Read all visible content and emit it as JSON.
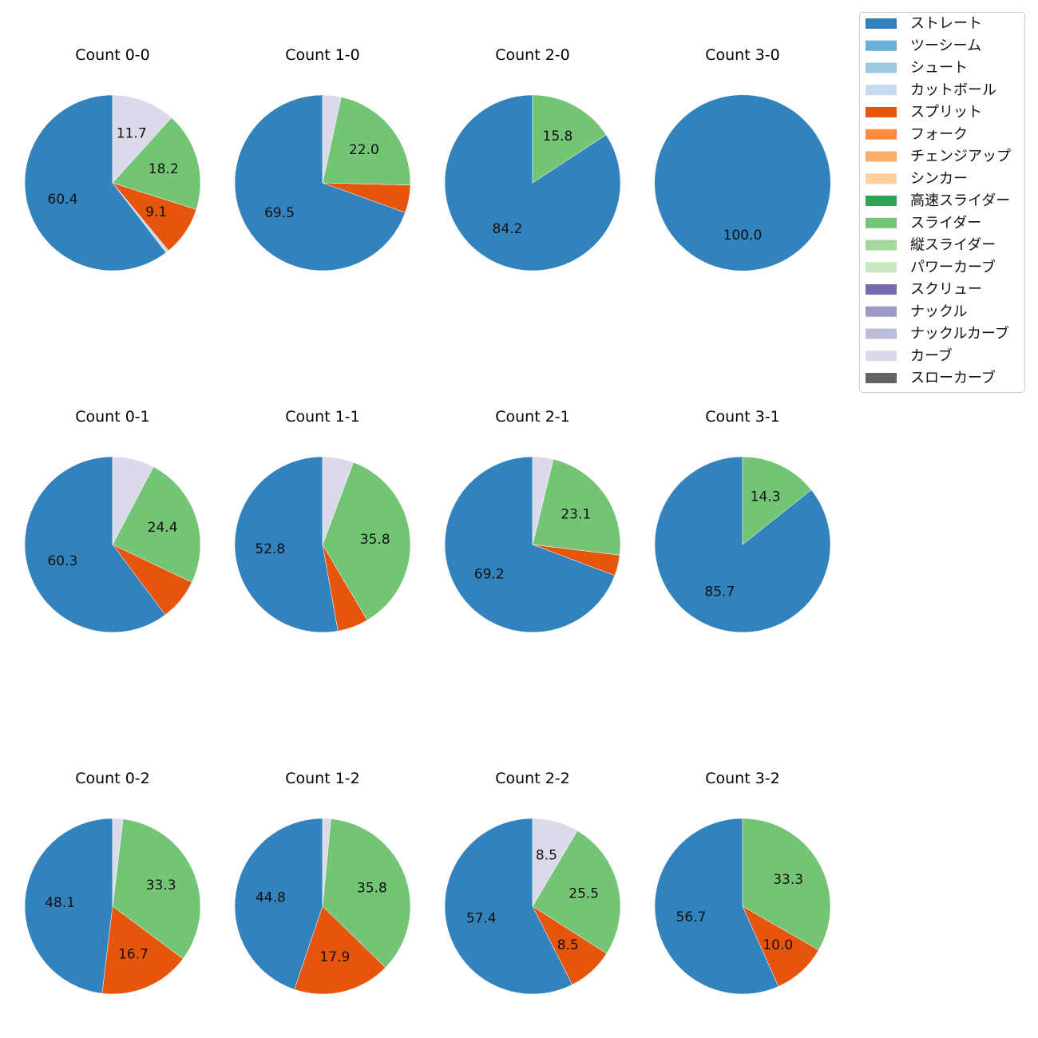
{
  "chart_data": {
    "type": "pie",
    "legend_placement": "top-right",
    "start_angle_deg": 90,
    "direction": "counterclockwise",
    "label_min_percent": 8,
    "legend": [
      {
        "name": "ストレート",
        "color": "#3182bd"
      },
      {
        "name": "ツーシーム",
        "color": "#6baed6"
      },
      {
        "name": "シュート",
        "color": "#9ecae1"
      },
      {
        "name": "カットボール",
        "color": "#c6dbef"
      },
      {
        "name": "スプリット",
        "color": "#e6550d"
      },
      {
        "name": "フォーク",
        "color": "#fd8d3c"
      },
      {
        "name": "チェンジアップ",
        "color": "#fdae6b"
      },
      {
        "name": "シンカー",
        "color": "#fdd0a2"
      },
      {
        "name": "高速スライダー",
        "color": "#31a354"
      },
      {
        "name": "スライダー",
        "color": "#74c476"
      },
      {
        "name": "縦スライダー",
        "color": "#a1d99b"
      },
      {
        "name": "パワーカーブ",
        "color": "#c7e9c0"
      },
      {
        "name": "スクリュー",
        "color": "#756bb1"
      },
      {
        "name": "ナックル",
        "color": "#9e9ac8"
      },
      {
        "name": "ナックルカーブ",
        "color": "#bcbddc"
      },
      {
        "name": "カーブ",
        "color": "#dadaeb"
      },
      {
        "name": "スローカーブ",
        "color": "#636363"
      }
    ],
    "charts": [
      {
        "title": "Count 0-0",
        "slices": [
          {
            "name": "ストレート",
            "value": 60.4
          },
          {
            "name": "カットボール",
            "value": 0.6
          },
          {
            "name": "スプリット",
            "value": 9.1
          },
          {
            "name": "スライダー",
            "value": 18.2
          },
          {
            "name": "カーブ",
            "value": 11.7
          }
        ]
      },
      {
        "title": "Count 1-0",
        "slices": [
          {
            "name": "ストレート",
            "value": 69.5
          },
          {
            "name": "スプリット",
            "value": 5.1
          },
          {
            "name": "スライダー",
            "value": 22.0
          },
          {
            "name": "カーブ",
            "value": 3.4
          }
        ]
      },
      {
        "title": "Count 2-0",
        "slices": [
          {
            "name": "ストレート",
            "value": 84.2
          },
          {
            "name": "スライダー",
            "value": 15.8
          }
        ]
      },
      {
        "title": "Count 3-0",
        "slices": [
          {
            "name": "ストレート",
            "value": 100.0
          }
        ]
      },
      {
        "title": "Count 0-1",
        "slices": [
          {
            "name": "ストレート",
            "value": 60.3
          },
          {
            "name": "スプリット",
            "value": 7.7
          },
          {
            "name": "スライダー",
            "value": 24.4
          },
          {
            "name": "カーブ",
            "value": 7.7
          }
        ]
      },
      {
        "title": "Count 1-1",
        "slices": [
          {
            "name": "ストレート",
            "value": 52.8
          },
          {
            "name": "スプリット",
            "value": 5.7
          },
          {
            "name": "スライダー",
            "value": 35.8
          },
          {
            "name": "カーブ",
            "value": 5.7
          }
        ]
      },
      {
        "title": "Count 2-1",
        "slices": [
          {
            "name": "ストレート",
            "value": 69.2
          },
          {
            "name": "スプリット",
            "value": 3.8
          },
          {
            "name": "スライダー",
            "value": 23.1
          },
          {
            "name": "カーブ",
            "value": 3.8
          }
        ]
      },
      {
        "title": "Count 3-1",
        "slices": [
          {
            "name": "ストレート",
            "value": 85.7
          },
          {
            "name": "スライダー",
            "value": 14.3
          }
        ]
      },
      {
        "title": "Count 0-2",
        "slices": [
          {
            "name": "ストレート",
            "value": 48.1
          },
          {
            "name": "スプリット",
            "value": 16.7
          },
          {
            "name": "スライダー",
            "value": 33.3
          },
          {
            "name": "カーブ",
            "value": 1.9
          }
        ]
      },
      {
        "title": "Count 1-2",
        "slices": [
          {
            "name": "ストレート",
            "value": 44.8
          },
          {
            "name": "スプリット",
            "value": 17.9
          },
          {
            "name": "スライダー",
            "value": 35.8
          },
          {
            "name": "カーブ",
            "value": 1.5
          }
        ]
      },
      {
        "title": "Count 2-2",
        "slices": [
          {
            "name": "ストレート",
            "value": 57.4
          },
          {
            "name": "スプリット",
            "value": 8.5
          },
          {
            "name": "スライダー",
            "value": 25.5
          },
          {
            "name": "カーブ",
            "value": 8.5
          }
        ]
      },
      {
        "title": "Count 3-2",
        "slices": [
          {
            "name": "ストレート",
            "value": 56.7
          },
          {
            "name": "スプリット",
            "value": 10.0
          },
          {
            "name": "スライダー",
            "value": 33.3
          }
        ]
      }
    ]
  }
}
